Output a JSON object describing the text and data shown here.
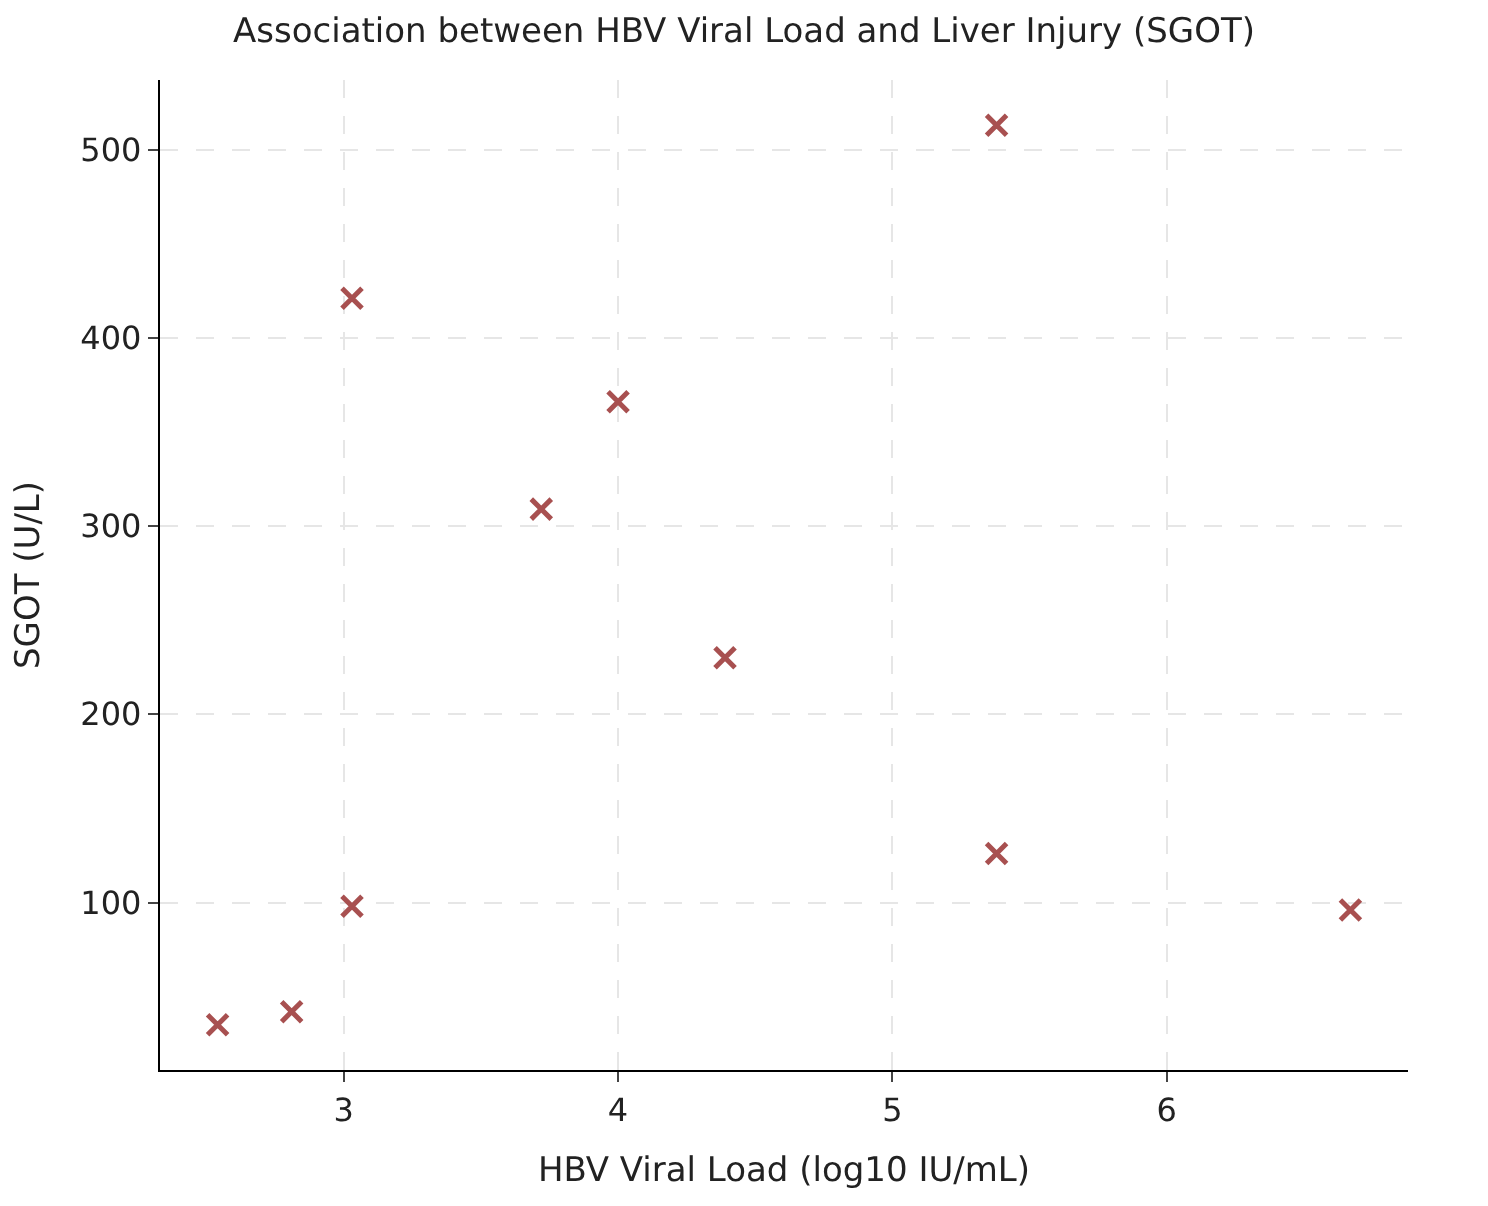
{
  "chart_data": {
    "type": "scatter",
    "title": "Association between HBV Viral Load and Liver Injury (SGOT)",
    "xlabel": "HBV Viral Load (log10 IU/mL)",
    "ylabel": "SGOT (U/L)",
    "x": [
      2.54,
      2.81,
      3.03,
      3.03,
      3.72,
      4.0,
      4.39,
      5.38,
      5.38,
      6.67
    ],
    "series": [
      {
        "color": "#a85050",
        "values": [
          35,
          42,
          98,
          421,
          309,
          366,
          230,
          513,
          126,
          96
        ]
      }
    ],
    "xlim": [
      2.33,
      6.88
    ],
    "xticks": [
      3,
      4,
      5,
      6
    ],
    "ylim": [
      11,
      537
    ],
    "yticks": [
      100,
      200,
      300,
      400,
      500
    ],
    "grid": true,
    "marker": "cross",
    "legend": false
  }
}
